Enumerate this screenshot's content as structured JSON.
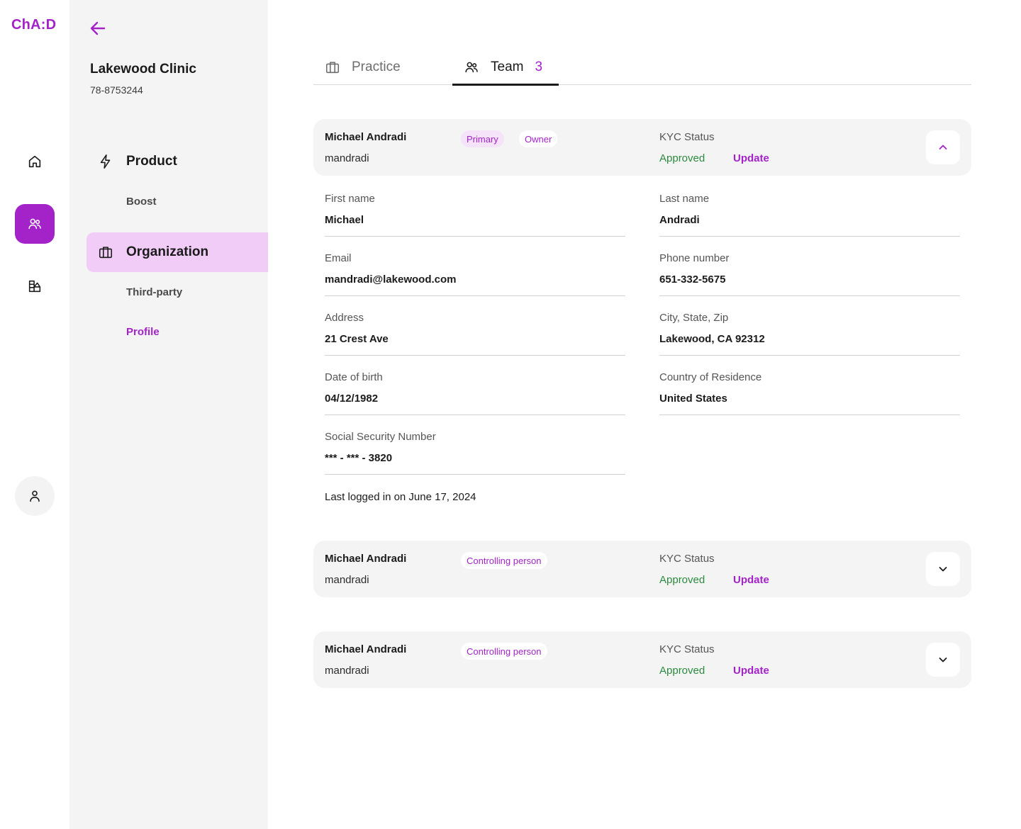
{
  "app": {
    "logo": "ChA:D"
  },
  "rail": {
    "items": [
      {
        "icon": "home-icon"
      },
      {
        "icon": "users-icon",
        "active": true
      },
      {
        "icon": "shapes-icon"
      }
    ],
    "profile_icon": "user-icon"
  },
  "sidebar": {
    "clinic_name": "Lakewood Clinic",
    "clinic_id": "78-8753244",
    "groups": [
      {
        "label": "Product",
        "icon": "lightning-icon",
        "subitems": [
          "Boost"
        ]
      },
      {
        "label": "Organization",
        "icon": "briefcase-icon",
        "active": true,
        "subitems": [
          "Third-party",
          "Profile"
        ]
      }
    ],
    "active_subitem": "Profile"
  },
  "tabs": [
    {
      "label": "Practice",
      "icon": "briefcase-icon"
    },
    {
      "label": "Team",
      "icon": "users-icon",
      "count": "3",
      "active": true
    }
  ],
  "members": [
    {
      "name": "Michael Andradi",
      "username": "mandradi",
      "badges": [
        "Primary",
        "Owner"
      ],
      "kyc_label": "KYC Status",
      "kyc_status": "Approved",
      "kyc_action": "Update",
      "expanded": true,
      "details": {
        "first_name": {
          "label": "First name",
          "value": "Michael"
        },
        "last_name": {
          "label": "Last name",
          "value": "Andradi"
        },
        "email": {
          "label": "Email",
          "value": "mandradi@lakewood.com"
        },
        "phone": {
          "label": "Phone number",
          "value": "651-332-5675"
        },
        "address": {
          "label": "Address",
          "value": "21 Crest Ave"
        },
        "city": {
          "label": "City, State, Zip",
          "value": "Lakewood, CA 92312"
        },
        "dob": {
          "label": "Date of birth",
          "value": "04/12/1982"
        },
        "country": {
          "label": "Country of Residence",
          "value": "United States"
        },
        "ssn": {
          "label": "Social Security Number",
          "value": "*** - *** - 3820"
        },
        "last_login": "Last logged in on June 17, 2024"
      }
    },
    {
      "name": "Michael Andradi",
      "username": "mandradi",
      "badges": [
        "Controlling person"
      ],
      "kyc_label": "KYC Status",
      "kyc_status": "Approved",
      "kyc_action": "Update",
      "expanded": false
    },
    {
      "name": "Michael Andradi",
      "username": "mandradi",
      "badges": [
        "Controlling person"
      ],
      "kyc_label": "KYC Status",
      "kyc_status": "Approved",
      "kyc_action": "Update",
      "expanded": false
    }
  ],
  "colors": {
    "accent": "#a323c9",
    "accent_light": "#f0ccf7",
    "success": "#2a8a3e",
    "sidebar_bg": "#f4f4f4"
  }
}
